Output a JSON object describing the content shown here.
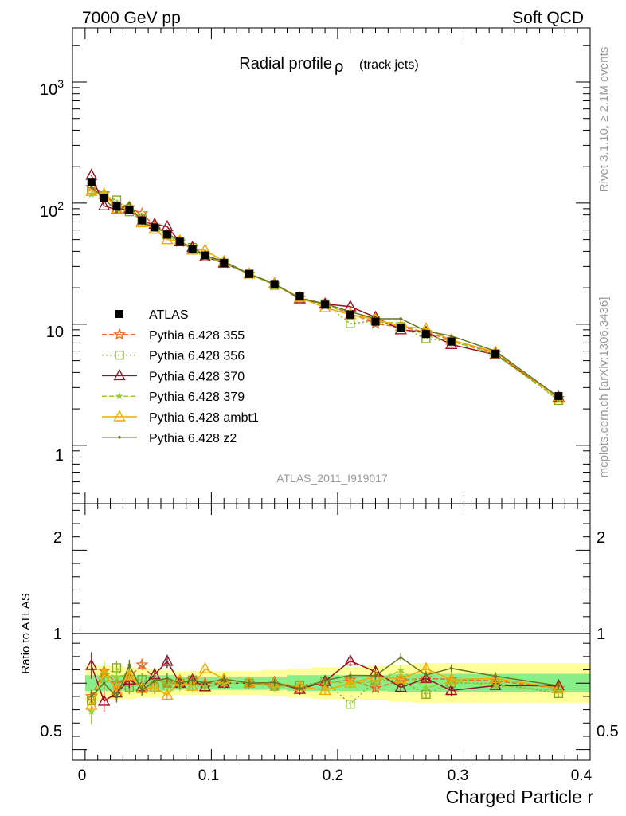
{
  "header": {
    "left": "7000 GeV pp",
    "right": "Soft QCD"
  },
  "side_labels": {
    "rivet": "Rivet 3.1.10, ≥ 2.1M events",
    "mcplots": "mcplots.cern.ch [arXiv:1306.3436]"
  },
  "chart_data": {
    "type": "line",
    "title_main": "Radial profile",
    "title_symbol": "ρ",
    "title_sub": "(track jets)",
    "analysis": "ATLAS_2011_I919017",
    "xlabel": "Charged Particle r",
    "ylabel_ratio": "Ratio to ATLAS",
    "xlim": [
      -0.01,
      0.4
    ],
    "ylim": [
      0.33,
      2800
    ],
    "yscale": "log",
    "ratio_ylim": [
      0.42,
      2.35
    ],
    "x_ticks": [
      "0",
      "0.1",
      "0.2",
      "0.3",
      "0.4"
    ],
    "y_ticks": [
      "1",
      "10",
      "10^3",
      "10^2"
    ],
    "ratio_ticks": [
      "0.5",
      "1",
      "2"
    ],
    "legend_position": "middle-left",
    "x": [
      0.005,
      0.015,
      0.025,
      0.035,
      0.045,
      0.055,
      0.065,
      0.075,
      0.085,
      0.095,
      0.11,
      0.13,
      0.15,
      0.17,
      0.19,
      0.21,
      0.23,
      0.25,
      0.27,
      0.29,
      0.325,
      0.375
    ],
    "data": {
      "name": "ATLAS",
      "values": [
        150,
        110,
        95,
        88,
        72,
        63,
        55,
        48,
        42,
        37,
        32,
        26,
        21.5,
        17,
        14.5,
        12,
        10.5,
        9.3,
        8.3,
        7.2,
        5.7,
        2.55
      ],
      "color": "#000000"
    },
    "band_inner": [
      0.06,
      0.06,
      0.06,
      0.06,
      0.06,
      0.06,
      0.06,
      0.05,
      0.05,
      0.05,
      0.05,
      0.05,
      0.05,
      0.06,
      0.06,
      0.06,
      0.06,
      0.07,
      0.07,
      0.07,
      0.07,
      0.07
    ],
    "band_outer": [
      0.14,
      0.13,
      0.13,
      0.12,
      0.11,
      0.11,
      0.1,
      0.09,
      0.09,
      0.09,
      0.09,
      0.09,
      0.1,
      0.11,
      0.12,
      0.12,
      0.13,
      0.14,
      0.15,
      0.15,
      0.15,
      0.15
    ],
    "band_colors": {
      "inner": "#88ee88",
      "outer": "#ffff99"
    },
    "series": [
      {
        "name": "Pythia 6.428 355",
        "marker": "star-open",
        "dash": "6,3",
        "color": "#ee6622",
        "values": [
          135,
          120,
          95,
          92,
          82,
          65,
          55,
          48,
          43,
          37,
          32,
          26,
          21.2,
          16.5,
          14.5,
          12.3,
          10.1,
          9.5,
          8.6,
          7.4,
          5.8,
          2.45
        ],
        "ratio_err": [
          0.05,
          0.05,
          0.05,
          0.04,
          0.04,
          0.04,
          0.04,
          0.04,
          0.04,
          0.04,
          0.03,
          0.03,
          0.03,
          0.03,
          0.03,
          0.03,
          0.03,
          0.03,
          0.03,
          0.03,
          0.03,
          0.03
        ]
      },
      {
        "name": "Pythia 6.428 356",
        "marker": "square-open",
        "dash": "2,3",
        "color": "#88aa22",
        "values": [
          130,
          115,
          106,
          85,
          74,
          61,
          55,
          48,
          43,
          36,
          32,
          26,
          21,
          16.7,
          14.7,
          10.1,
          10.7,
          9.5,
          7.6,
          7.2,
          5.7,
          2.35
        ],
        "ratio_err": [
          0.07,
          0.06,
          0.05,
          0.05,
          0.05,
          0.05,
          0.04,
          0.04,
          0.04,
          0.04,
          0.04,
          0.03,
          0.03,
          0.03,
          0.03,
          0.03,
          0.03,
          0.03,
          0.03,
          0.03,
          0.03,
          0.03
        ]
      },
      {
        "name": "Pythia 6.428 370",
        "marker": "triangle-open",
        "dash": "",
        "color": "#991122",
        "values": [
          170,
          95,
          88,
          90,
          70,
          67,
          64,
          48,
          43,
          36,
          32,
          26,
          21.6,
          16.2,
          14.7,
          14.0,
          11.4,
          9.0,
          8.6,
          6.8,
          5.6,
          2.5
        ],
        "ratio_err": [
          0.1,
          0.08,
          0.07,
          0.06,
          0.05,
          0.05,
          0.05,
          0.04,
          0.04,
          0.04,
          0.04,
          0.04,
          0.04,
          0.04,
          0.04,
          0.04,
          0.04,
          0.04,
          0.04,
          0.04,
          0.04,
          0.04
        ]
      },
      {
        "name": "Pythia 6.428 379",
        "marker": "star-filled",
        "dash": "6,3",
        "color": "#99cc33",
        "values": [
          118,
          120,
          99,
          95,
          71,
          64,
          55,
          47,
          42,
          36,
          32,
          26,
          21,
          16.6,
          14.6,
          12.0,
          10.6,
          10.2,
          8.0,
          7.3,
          5.6,
          2.4
        ],
        "ratio_err": [
          0.1,
          0.08,
          0.07,
          0.06,
          0.05,
          0.05,
          0.05,
          0.04,
          0.04,
          0.04,
          0.04,
          0.04,
          0.04,
          0.04,
          0.04,
          0.04,
          0.04,
          0.04,
          0.04,
          0.04,
          0.04,
          0.04
        ]
      },
      {
        "name": "Pythia 6.428 ambt1",
        "marker": "triangle-open",
        "dash": "",
        "color": "#f2a900",
        "values": [
          125,
          118,
          90,
          93,
          69,
          61,
          50,
          49,
          41,
          41,
          33,
          26,
          21.5,
          16.6,
          13.7,
          12.0,
          11.0,
          9.6,
          9.2,
          7.4,
          5.9,
          2.45
        ],
        "ratio_err": [
          0.05,
          0.05,
          0.04,
          0.04,
          0.04,
          0.04,
          0.04,
          0.04,
          0.04,
          0.04,
          0.03,
          0.03,
          0.03,
          0.03,
          0.03,
          0.03,
          0.03,
          0.03,
          0.03,
          0.03,
          0.03,
          0.03
        ]
      },
      {
        "name": "Pythia 6.428 z2",
        "marker": "dot",
        "dash": "",
        "color": "#667722",
        "values": [
          135,
          110,
          85,
          100,
          68,
          64,
          57,
          48,
          43,
          37,
          33,
          26,
          21.6,
          16.3,
          14.8,
          12.7,
          11.1,
          11.1,
          8.8,
          8.0,
          6.0,
          2.5
        ],
        "ratio_err": [
          0.05,
          0.05,
          0.04,
          0.04,
          0.04,
          0.04,
          0.04,
          0.04,
          0.04,
          0.04,
          0.03,
          0.03,
          0.03,
          0.03,
          0.03,
          0.03,
          0.03,
          0.03,
          0.03,
          0.03,
          0.03,
          0.03
        ]
      }
    ]
  }
}
